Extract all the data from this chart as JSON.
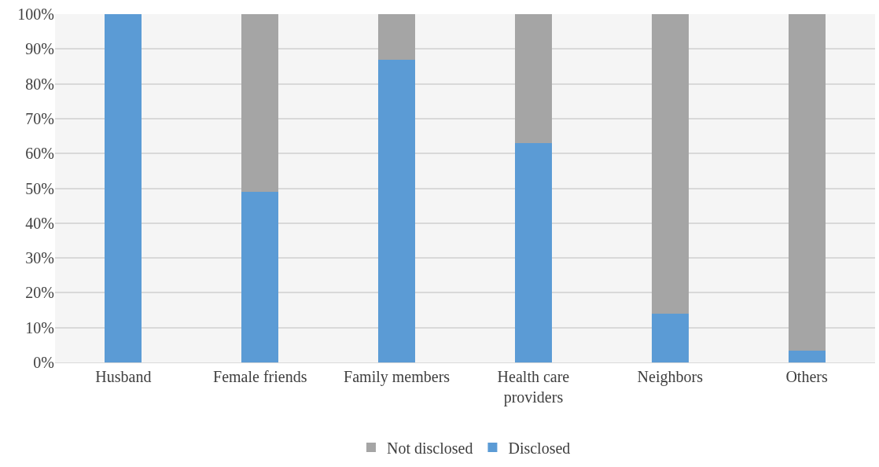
{
  "chart_data": {
    "type": "bar",
    "stacked": true,
    "categories": [
      "Husband",
      "Female friends",
      "Family members",
      "Health care providers",
      "Neighbors",
      "Others"
    ],
    "series": [
      {
        "name": "Disclosed",
        "color": "#5b9bd5",
        "values": [
          100,
          49,
          87,
          63,
          14,
          3.5
        ]
      },
      {
        "name": "Not disclosed",
        "color": "#a5a5a5",
        "values": [
          0,
          51,
          13,
          37,
          86,
          96.5
        ]
      }
    ],
    "ylim": [
      0,
      100
    ],
    "yticks": [
      {
        "value": 0,
        "label": "0%"
      },
      {
        "value": 10,
        "label": "10%"
      },
      {
        "value": 20,
        "label": "20%"
      },
      {
        "value": 30,
        "label": "30%"
      },
      {
        "value": 40,
        "label": "40%"
      },
      {
        "value": 50,
        "label": "50%"
      },
      {
        "value": 60,
        "label": "60%"
      },
      {
        "value": 70,
        "label": "70%"
      },
      {
        "value": 80,
        "label": "80%"
      },
      {
        "value": 90,
        "label": "90%"
      },
      {
        "value": 100,
        "label": "100%"
      }
    ],
    "grid": "y",
    "legend": "bottom"
  }
}
